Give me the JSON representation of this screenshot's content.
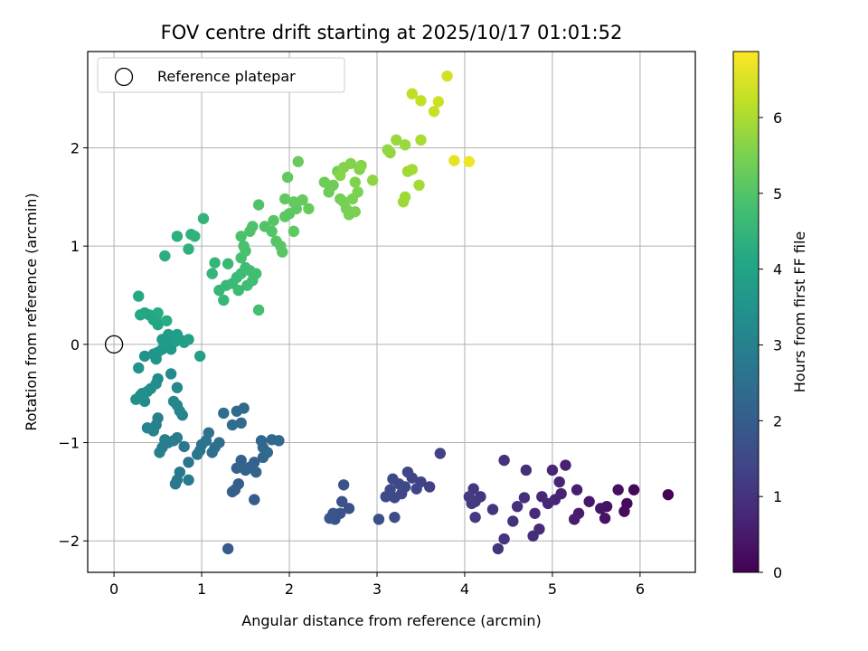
{
  "chart_data": {
    "type": "scatter",
    "title": "FOV centre drift starting at 2025/10/17 01:01:52",
    "xlabel": "Angular distance from reference (arcmin)",
    "ylabel": "Rotation from reference (arcmin)",
    "xlim": [
      -0.3,
      6.63
    ],
    "ylim": [
      -2.32,
      2.98
    ],
    "xticks": [
      0,
      1,
      2,
      3,
      4,
      5,
      6
    ],
    "yticks": [
      -2,
      -1,
      0,
      1,
      2
    ],
    "grid": true,
    "legend": {
      "position": "top-left",
      "entries": [
        "Reference platepar"
      ]
    },
    "reference_point": {
      "x": 0,
      "y": 0
    },
    "colorbar": {
      "label": "Hours from first FF file",
      "range": [
        0,
        6.87
      ],
      "ticks": [
        0,
        1,
        2,
        3,
        4,
        5,
        6
      ],
      "colormap": "viridis"
    },
    "points": [
      [
        6.32,
        -1.53,
        0.05
      ],
      [
        5.93,
        -1.48,
        0.12
      ],
      [
        5.85,
        -1.62,
        0.18
      ],
      [
        5.82,
        -1.7,
        0.22
      ],
      [
        5.75,
        -1.48,
        0.28
      ],
      [
        5.62,
        -1.65,
        0.33
      ],
      [
        5.6,
        -1.77,
        0.36
      ],
      [
        5.55,
        -1.67,
        0.4
      ],
      [
        5.42,
        -1.6,
        0.46
      ],
      [
        5.3,
        -1.72,
        0.52
      ],
      [
        5.25,
        -1.78,
        0.55
      ],
      [
        5.28,
        -1.48,
        0.58
      ],
      [
        5.15,
        -1.23,
        0.62
      ],
      [
        5.1,
        -1.52,
        0.64
      ],
      [
        5.08,
        -1.4,
        0.68
      ],
      [
        5.03,
        -1.58,
        0.7
      ],
      [
        5.0,
        -1.28,
        0.74
      ],
      [
        4.95,
        -1.62,
        0.78
      ],
      [
        4.88,
        -1.55,
        0.8
      ],
      [
        4.85,
        -1.88,
        0.84
      ],
      [
        4.8,
        -1.72,
        0.86
      ],
      [
        4.78,
        -1.95,
        0.88
      ],
      [
        4.7,
        -1.28,
        0.9
      ],
      [
        4.68,
        -1.56,
        0.92
      ],
      [
        4.6,
        -1.65,
        0.95
      ],
      [
        4.55,
        -1.8,
        0.98
      ],
      [
        4.45,
        -1.18,
        1.0
      ],
      [
        4.45,
        -1.98,
        1.02
      ],
      [
        4.38,
        -2.08,
        1.04
      ],
      [
        4.32,
        -1.68,
        1.06
      ],
      [
        4.18,
        -1.55,
        1.1
      ],
      [
        4.12,
        -1.6,
        1.12
      ],
      [
        4.1,
        -1.47,
        1.14
      ],
      [
        4.08,
        -1.62,
        1.16
      ],
      [
        4.12,
        -1.76,
        1.18
      ],
      [
        4.05,
        -1.55,
        1.2
      ],
      [
        3.72,
        -1.11,
        1.3
      ],
      [
        3.6,
        -1.45,
        1.34
      ],
      [
        3.5,
        -1.4,
        1.36
      ],
      [
        3.45,
        -1.47,
        1.38
      ],
      [
        3.4,
        -1.36,
        1.4
      ],
      [
        3.35,
        -1.3,
        1.42
      ],
      [
        3.32,
        -1.45,
        1.44
      ],
      [
        3.28,
        -1.52,
        1.46
      ],
      [
        3.25,
        -1.42,
        1.48
      ],
      [
        3.2,
        -1.56,
        1.5
      ],
      [
        3.18,
        -1.37,
        1.52
      ],
      [
        3.15,
        -1.48,
        1.54
      ],
      [
        3.1,
        -1.55,
        1.56
      ],
      [
        3.2,
        -1.76,
        1.6
      ],
      [
        3.02,
        -1.78,
        1.64
      ],
      [
        2.68,
        -1.67,
        1.7
      ],
      [
        2.62,
        -1.43,
        1.72
      ],
      [
        2.6,
        -1.6,
        1.74
      ],
      [
        2.58,
        -1.72,
        1.76
      ],
      [
        2.52,
        -1.78,
        1.78
      ],
      [
        2.5,
        -1.72,
        1.8
      ],
      [
        2.46,
        -1.77,
        1.82
      ],
      [
        1.3,
        -2.08,
        1.95
      ],
      [
        1.6,
        -1.58,
        2.0
      ],
      [
        1.42,
        -1.42,
        2.04
      ],
      [
        1.38,
        -1.48,
        2.06
      ],
      [
        1.35,
        -1.5,
        2.08
      ],
      [
        1.55,
        -1.25,
        2.12
      ],
      [
        1.6,
        -1.2,
        2.14
      ],
      [
        1.4,
        -1.26,
        2.16
      ],
      [
        1.45,
        -1.18,
        2.18
      ],
      [
        1.5,
        -1.28,
        2.2
      ],
      [
        1.62,
        -1.3,
        2.22
      ],
      [
        1.7,
        -1.15,
        2.24
      ],
      [
        1.68,
        -0.98,
        2.26
      ],
      [
        1.7,
        -1.05,
        2.28
      ],
      [
        1.8,
        -0.97,
        2.3
      ],
      [
        1.88,
        -0.98,
        2.32
      ],
      [
        1.75,
        -1.1,
        2.34
      ],
      [
        1.48,
        -0.65,
        2.38
      ],
      [
        1.4,
        -0.68,
        2.4
      ],
      [
        1.45,
        -0.8,
        2.42
      ],
      [
        1.35,
        -0.82,
        2.44
      ],
      [
        1.25,
        -0.7,
        2.46
      ],
      [
        1.2,
        -1.0,
        2.5
      ],
      [
        1.15,
        -1.05,
        2.52
      ],
      [
        1.12,
        -1.1,
        2.54
      ],
      [
        1.08,
        -0.9,
        2.56
      ],
      [
        1.05,
        -0.98,
        2.58
      ],
      [
        1.0,
        -1.02,
        2.62
      ],
      [
        0.98,
        -1.08,
        2.64
      ],
      [
        0.95,
        -1.12,
        2.66
      ],
      [
        0.85,
        -1.2,
        2.7
      ],
      [
        0.8,
        -1.04,
        2.72
      ],
      [
        0.75,
        -1.3,
        2.74
      ],
      [
        0.72,
        -1.38,
        2.76
      ],
      [
        0.7,
        -1.42,
        2.78
      ],
      [
        0.85,
        -1.38,
        2.8
      ],
      [
        0.72,
        -0.95,
        2.84
      ],
      [
        0.68,
        -0.98,
        2.86
      ],
      [
        0.62,
        -1.0,
        2.88
      ],
      [
        0.58,
        -0.97,
        2.9
      ],
      [
        0.55,
        -1.05,
        2.92
      ],
      [
        0.52,
        -1.1,
        2.94
      ],
      [
        0.5,
        -0.75,
        2.98
      ],
      [
        0.48,
        -0.82,
        3.0
      ],
      [
        0.45,
        -0.88,
        3.02
      ],
      [
        0.38,
        -0.85,
        3.06
      ],
      [
        0.78,
        -0.72,
        3.1
      ],
      [
        0.75,
        -0.68,
        3.12
      ],
      [
        0.72,
        -0.62,
        3.14
      ],
      [
        0.68,
        -0.58,
        3.16
      ],
      [
        0.72,
        -0.44,
        3.2
      ],
      [
        0.65,
        -0.3,
        3.24
      ],
      [
        0.5,
        -0.35,
        3.28
      ],
      [
        0.48,
        -0.4,
        3.3
      ],
      [
        0.42,
        -0.45,
        3.32
      ],
      [
        0.38,
        -0.48,
        3.34
      ],
      [
        0.35,
        -0.58,
        3.36
      ],
      [
        0.32,
        -0.5,
        3.38
      ],
      [
        0.3,
        -0.52,
        3.4
      ],
      [
        0.25,
        -0.56,
        3.42
      ],
      [
        0.28,
        -0.24,
        3.46
      ],
      [
        0.35,
        -0.12,
        3.5
      ],
      [
        0.45,
        -0.1,
        3.54
      ],
      [
        0.48,
        -0.15,
        3.56
      ],
      [
        0.5,
        -0.08,
        3.58
      ],
      [
        0.55,
        -0.05,
        3.6
      ],
      [
        0.58,
        0.0,
        3.64
      ],
      [
        0.62,
        -0.02,
        3.66
      ],
      [
        0.65,
        -0.05,
        3.68
      ],
      [
        0.6,
        0.02,
        3.7
      ],
      [
        0.55,
        0.05,
        3.72
      ],
      [
        0.62,
        0.1,
        3.76
      ],
      [
        0.7,
        0.03,
        3.8
      ],
      [
        0.72,
        0.1,
        3.82
      ],
      [
        0.75,
        0.05,
        3.84
      ],
      [
        0.8,
        0.02,
        3.86
      ],
      [
        0.85,
        0.05,
        3.88
      ],
      [
        0.98,
        -0.12,
        3.92
      ],
      [
        0.5,
        0.2,
        4.0
      ],
      [
        0.48,
        0.28,
        4.04
      ],
      [
        0.45,
        0.25,
        4.06
      ],
      [
        0.4,
        0.3,
        4.08
      ],
      [
        0.35,
        0.32,
        4.1
      ],
      [
        0.3,
        0.3,
        4.12
      ],
      [
        0.28,
        0.49,
        4.16
      ],
      [
        0.5,
        0.32,
        4.2
      ],
      [
        0.6,
        0.24,
        4.24
      ],
      [
        0.58,
        0.9,
        4.3
      ],
      [
        0.72,
        1.1,
        4.34
      ],
      [
        0.85,
        0.97,
        4.38
      ],
      [
        0.88,
        1.12,
        4.4
      ],
      [
        0.92,
        1.1,
        4.42
      ],
      [
        1.02,
        1.28,
        4.46
      ],
      [
        1.12,
        0.72,
        4.5
      ],
      [
        1.15,
        0.83,
        4.52
      ],
      [
        1.2,
        0.55,
        4.54
      ],
      [
        1.25,
        0.45,
        4.56
      ],
      [
        1.28,
        0.6,
        4.58
      ],
      [
        1.3,
        0.82,
        4.6
      ],
      [
        1.35,
        0.62,
        4.62
      ],
      [
        1.4,
        0.68,
        4.64
      ],
      [
        1.42,
        0.55,
        4.66
      ],
      [
        1.45,
        0.72,
        4.68
      ],
      [
        1.5,
        0.78,
        4.7
      ],
      [
        1.52,
        0.6,
        4.72
      ],
      [
        1.55,
        0.75,
        4.74
      ],
      [
        1.58,
        0.65,
        4.76
      ],
      [
        1.62,
        0.72,
        4.78
      ],
      [
        1.65,
        0.35,
        4.8
      ],
      [
        1.45,
        0.88,
        4.84
      ],
      [
        1.48,
        1.0,
        4.86
      ],
      [
        1.5,
        0.95,
        4.88
      ],
      [
        1.45,
        1.1,
        4.9
      ],
      [
        1.55,
        1.15,
        4.92
      ],
      [
        1.58,
        1.2,
        4.94
      ],
      [
        1.65,
        1.42,
        4.96
      ],
      [
        1.72,
        1.2,
        4.98
      ],
      [
        1.8,
        1.15,
        5.0
      ],
      [
        1.82,
        1.26,
        5.02
      ],
      [
        1.85,
        1.05,
        5.04
      ],
      [
        1.9,
        1.0,
        5.06
      ],
      [
        1.92,
        0.94,
        5.08
      ],
      [
        1.95,
        1.3,
        5.1
      ],
      [
        2.0,
        1.33,
        5.12
      ],
      [
        2.05,
        1.15,
        5.14
      ],
      [
        2.08,
        1.38,
        5.16
      ],
      [
        1.95,
        1.48,
        5.18
      ],
      [
        1.98,
        1.7,
        5.2
      ],
      [
        2.05,
        1.45,
        5.22
      ],
      [
        2.15,
        1.47,
        5.24
      ],
      [
        2.22,
        1.38,
        5.26
      ],
      [
        2.1,
        1.86,
        5.28
      ],
      [
        2.4,
        1.65,
        5.32
      ],
      [
        2.45,
        1.55,
        5.34
      ],
      [
        2.5,
        1.62,
        5.36
      ],
      [
        2.55,
        1.76,
        5.38
      ],
      [
        2.58,
        1.48,
        5.4
      ],
      [
        2.62,
        1.45,
        5.42
      ],
      [
        2.65,
        1.38,
        5.44
      ],
      [
        2.68,
        1.32,
        5.46
      ],
      [
        2.72,
        1.48,
        5.48
      ],
      [
        2.75,
        1.35,
        5.5
      ],
      [
        2.78,
        1.55,
        5.52
      ],
      [
        2.75,
        1.65,
        5.54
      ],
      [
        2.8,
        1.78,
        5.56
      ],
      [
        2.7,
        1.84,
        5.58
      ],
      [
        2.62,
        1.8,
        5.6
      ],
      [
        2.58,
        1.72,
        5.62
      ],
      [
        2.82,
        1.82,
        5.64
      ],
      [
        2.95,
        1.67,
        5.7
      ],
      [
        3.12,
        1.98,
        5.74
      ],
      [
        3.15,
        1.95,
        5.76
      ],
      [
        3.22,
        2.08,
        5.8
      ],
      [
        3.32,
        2.03,
        5.82
      ],
      [
        3.3,
        1.45,
        5.86
      ],
      [
        3.32,
        1.5,
        5.88
      ],
      [
        3.35,
        1.76,
        5.9
      ],
      [
        3.4,
        1.78,
        5.92
      ],
      [
        3.48,
        1.62,
        5.94
      ],
      [
        3.5,
        2.08,
        5.98
      ],
      [
        3.4,
        2.55,
        6.2
      ],
      [
        3.5,
        2.48,
        6.26
      ],
      [
        3.65,
        2.37,
        6.3
      ],
      [
        3.7,
        2.47,
        6.34
      ],
      [
        3.8,
        2.73,
        6.4
      ],
      [
        3.88,
        1.87,
        6.6
      ],
      [
        4.05,
        1.86,
        6.7
      ]
    ]
  }
}
